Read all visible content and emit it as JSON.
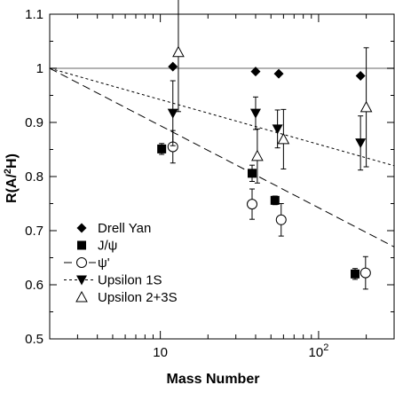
{
  "chart_data": {
    "type": "scatter",
    "title": "",
    "xlabel": "Mass Number",
    "ylabel": "R(A/²H)",
    "ylabel_parts": {
      "prefix": "R(A/",
      "sup": "2",
      "suffix": "H)"
    },
    "xscale": "log",
    "xlim": [
      2,
      300
    ],
    "ylim": [
      0.5,
      1.1
    ],
    "grid": false,
    "legend_position": "bottom-left",
    "x_ticks": [
      {
        "value": 10,
        "label": "10",
        "sup": ""
      },
      {
        "value": 100,
        "label": "10",
        "sup": "2"
      }
    ],
    "y_ticks": [
      0.5,
      0.6,
      0.7,
      0.8,
      0.9,
      1,
      1.1
    ],
    "y_tick_labels": [
      "0.5",
      "0.6",
      "0.7",
      "0.8",
      "0.9",
      "1",
      "1.1"
    ],
    "reference_line": 1.0,
    "fit_lines": [
      {
        "series": "ψ'",
        "style": "long-dash",
        "points": [
          [
            2,
            1.0
          ],
          [
            300,
            0.67
          ]
        ]
      },
      {
        "series": "Upsilon 1S",
        "style": "short-dash",
        "points": [
          [
            2,
            1.0
          ],
          [
            300,
            0.82
          ]
        ]
      }
    ],
    "series": [
      {
        "name": "Drell Yan",
        "marker": "diamond",
        "points": [
          {
            "x": 12,
            "y": 1.003,
            "err": 0
          },
          {
            "x": 40,
            "y": 0.994,
            "err": 0
          },
          {
            "x": 56,
            "y": 0.99,
            "err": 0
          },
          {
            "x": 184,
            "y": 0.986,
            "err": 0
          }
        ]
      },
      {
        "name": "J/ψ",
        "marker": "square",
        "points": [
          {
            "x": 10.2,
            "y": 0.851,
            "err": 0.01
          },
          {
            "x": 38,
            "y": 0.806,
            "err": 0.015
          },
          {
            "x": 53,
            "y": 0.756,
            "err": 0.008
          },
          {
            "x": 170,
            "y": 0.62,
            "err": 0.01
          }
        ]
      },
      {
        "name": "ψ'",
        "marker": "circle-open",
        "points": [
          {
            "x": 12,
            "y": 0.855,
            "err": 0.03
          },
          {
            "x": 38,
            "y": 0.749,
            "err": 0.028
          },
          {
            "x": 58,
            "y": 0.72,
            "err": 0.03
          },
          {
            "x": 198,
            "y": 0.622,
            "err": 0.03
          }
        ]
      },
      {
        "name": "Upsilon 1S",
        "marker": "triangle-down",
        "points": [
          {
            "x": 12,
            "y": 0.917,
            "err": 0.06
          },
          {
            "x": 40,
            "y": 0.917,
            "err": 0.03
          },
          {
            "x": 55,
            "y": 0.888,
            "err": 0.035
          },
          {
            "x": 184,
            "y": 0.862,
            "err": 0.05
          }
        ]
      },
      {
        "name": "Upsilon 2+3S",
        "marker": "triangle-open",
        "points": [
          {
            "x": 13,
            "y": 1.03,
            "err": 0.11
          },
          {
            "x": 41,
            "y": 0.838,
            "err": 0.05
          },
          {
            "x": 60,
            "y": 0.869,
            "err": 0.055
          },
          {
            "x": 200,
            "y": 0.928,
            "err": 0.11
          }
        ]
      }
    ],
    "legend": [
      {
        "label": "Drell Yan",
        "marker": "diamond",
        "line": "none"
      },
      {
        "label": "J/ψ",
        "marker": "square",
        "line": "none"
      },
      {
        "label": "ψ'",
        "marker": "circle-open",
        "line": "long-dash"
      },
      {
        "label": "Upsilon 1S",
        "marker": "triangle-down",
        "line": "short-dash"
      },
      {
        "label": "Upsilon 2+3S",
        "marker": "triangle-open",
        "line": "none"
      }
    ]
  }
}
